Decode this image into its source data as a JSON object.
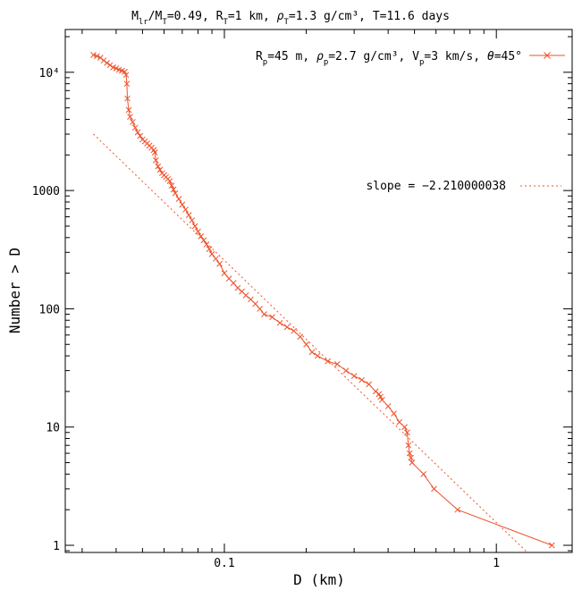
{
  "chart_data": {
    "type": "scatter",
    "title_parts": {
      "m1": "M",
      "m1_sub": "lr",
      "m2": "/M",
      "m2_sub": "T",
      "m_val": "=0.49, R",
      "r_sub": "T",
      "r_val": "=1 km, ",
      "rho": "ρ",
      "rho_sub": "T",
      "rho_val": "=1.3 g/cm³, T=11.6  days"
    },
    "xlabel": "D (km)",
    "ylabel": "Number > D",
    "x_scale": "log",
    "y_scale": "log",
    "xlim": [
      0.026,
      1.9
    ],
    "ylim": [
      0.87,
      23000
    ],
    "x_tick_labels": [
      {
        "value": 0.1,
        "label": "0.1"
      },
      {
        "value": 1,
        "label": "1"
      }
    ],
    "y_tick_labels": [
      {
        "value": 1,
        "label": "1"
      },
      {
        "value": 10,
        "label": "10"
      },
      {
        "value": 100,
        "label": "100"
      },
      {
        "value": 1000,
        "label": "1000"
      },
      {
        "value": 10000,
        "label": "10⁴"
      }
    ],
    "color": "#f0502a",
    "legend": {
      "series_parts": {
        "r": "R",
        "r_sub": "p",
        "r_val": "=45 m, ",
        "rho": "ρ",
        "rho_sub": "p",
        "rho_val": "=2.7 g/cm³, V",
        "v_sub": "p",
        "v_val": "=3 km/s, ",
        "theta": "θ",
        "theta_val": "=45°"
      },
      "fit_label": "slope = −2.210000038",
      "placement": "top-right"
    },
    "fit": {
      "slope": -2.210000038,
      "x": [
        0.033,
        1.3
      ],
      "y": [
        3000,
        0.87
      ]
    },
    "series": [
      {
        "marker": "x",
        "line": "solid",
        "x": [
          0.033,
          0.034,
          0.035,
          0.036,
          0.037,
          0.038,
          0.039,
          0.04,
          0.041,
          0.042,
          0.043,
          0.0435,
          0.0438,
          0.044,
          0.0445,
          0.045,
          0.046,
          0.047,
          0.048,
          0.049,
          0.05,
          0.051,
          0.052,
          0.053,
          0.054,
          0.055,
          0.0555,
          0.056,
          0.057,
          0.058,
          0.059,
          0.06,
          0.061,
          0.062,
          0.063,
          0.064,
          0.065,
          0.066,
          0.068,
          0.07,
          0.072,
          0.074,
          0.076,
          0.078,
          0.08,
          0.082,
          0.084,
          0.086,
          0.088,
          0.09,
          0.093,
          0.096,
          0.1,
          0.104,
          0.108,
          0.112,
          0.116,
          0.12,
          0.125,
          0.13,
          0.135,
          0.14,
          0.15,
          0.16,
          0.17,
          0.18,
          0.19,
          0.2,
          0.21,
          0.22,
          0.24,
          0.26,
          0.28,
          0.3,
          0.32,
          0.34,
          0.36,
          0.37,
          0.375,
          0.38,
          0.4,
          0.42,
          0.44,
          0.46,
          0.47,
          0.475,
          0.48,
          0.485,
          0.49,
          0.54,
          0.59,
          0.72,
          1.6
        ],
        "y": [
          14000,
          13700,
          13300,
          12600,
          12000,
          11500,
          11000,
          10800,
          10500,
          10300,
          10100,
          9500,
          8000,
          6000,
          4800,
          4200,
          3800,
          3400,
          3100,
          2900,
          2700,
          2600,
          2500,
          2400,
          2300,
          2200,
          2100,
          1800,
          1600,
          1500,
          1400,
          1350,
          1300,
          1250,
          1200,
          1100,
          1020,
          950,
          850,
          760,
          690,
          620,
          560,
          500,
          450,
          410,
          380,
          350,
          320,
          290,
          265,
          240,
          200,
          180,
          165,
          150,
          140,
          130,
          120,
          110,
          100,
          90,
          85,
          76,
          70,
          65,
          58,
          50,
          43,
          40,
          36,
          34,
          30,
          27,
          25,
          23,
          20,
          19,
          18,
          17,
          15,
          13,
          11,
          10,
          9,
          7,
          6,
          5.5,
          5,
          4,
          3,
          2,
          1
        ]
      }
    ]
  }
}
